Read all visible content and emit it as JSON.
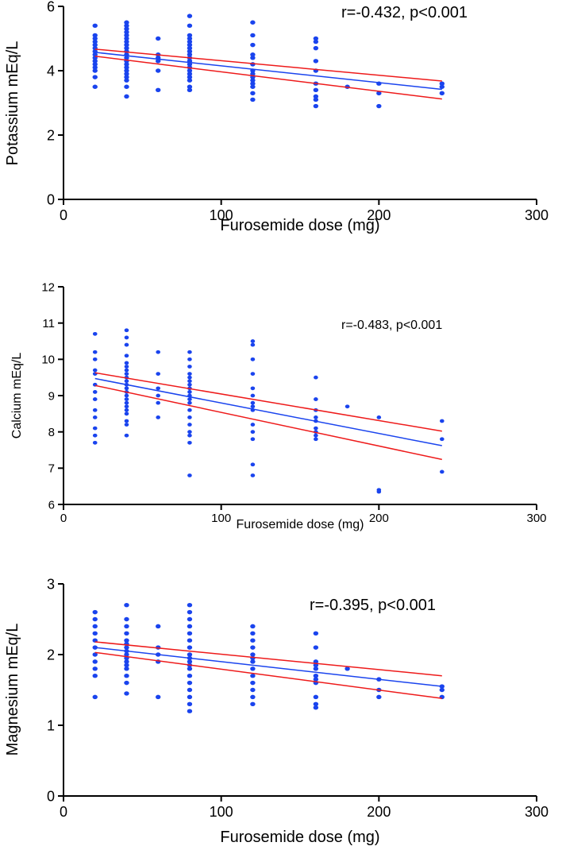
{
  "chart_data": [
    {
      "type": "scatter",
      "xlabel": "Furosemide dose (mg)",
      "ylabel": "Potassium mEq/L",
      "xlim": [
        0,
        300
      ],
      "ylim": [
        0,
        6
      ],
      "xticks": [
        0,
        100,
        200,
        300
      ],
      "yticks": [
        0,
        2,
        4,
        6
      ],
      "annotation": "r=-0.432, p<0.001",
      "point_color": "#1a44ee",
      "fit_color": "#1a44ee",
      "ci_color": "#ee1a1a",
      "points": [
        [
          20,
          5.4
        ],
        [
          20,
          5.1
        ],
        [
          20,
          5.0
        ],
        [
          20,
          4.9
        ],
        [
          20,
          4.8
        ],
        [
          20,
          4.7
        ],
        [
          20,
          4.6
        ],
        [
          20,
          4.5
        ],
        [
          20,
          4.4
        ],
        [
          20,
          4.3
        ],
        [
          20,
          4.2
        ],
        [
          20,
          4.1
        ],
        [
          20,
          4.0
        ],
        [
          20,
          3.8
        ],
        [
          20,
          3.5
        ],
        [
          40,
          5.5
        ],
        [
          40,
          5.4
        ],
        [
          40,
          5.3
        ],
        [
          40,
          5.2
        ],
        [
          40,
          5.1
        ],
        [
          40,
          5.0
        ],
        [
          40,
          4.9
        ],
        [
          40,
          4.8
        ],
        [
          40,
          4.7
        ],
        [
          40,
          4.6
        ],
        [
          40,
          4.5
        ],
        [
          40,
          4.4
        ],
        [
          40,
          4.3
        ],
        [
          40,
          4.2
        ],
        [
          40,
          4.1
        ],
        [
          40,
          4.0
        ],
        [
          40,
          3.9
        ],
        [
          40,
          3.8
        ],
        [
          40,
          3.7
        ],
        [
          40,
          3.5
        ],
        [
          40,
          3.2
        ],
        [
          60,
          5.0
        ],
        [
          60,
          4.5
        ],
        [
          60,
          4.4
        ],
        [
          60,
          4.3
        ],
        [
          60,
          4.0
        ],
        [
          60,
          3.4
        ],
        [
          80,
          5.7
        ],
        [
          80,
          5.4
        ],
        [
          80,
          5.1
        ],
        [
          80,
          5.0
        ],
        [
          80,
          4.9
        ],
        [
          80,
          4.8
        ],
        [
          80,
          4.7
        ],
        [
          80,
          4.6
        ],
        [
          80,
          4.5
        ],
        [
          80,
          4.4
        ],
        [
          80,
          4.3
        ],
        [
          80,
          4.2
        ],
        [
          80,
          4.1
        ],
        [
          80,
          4.0
        ],
        [
          80,
          3.9
        ],
        [
          80,
          3.8
        ],
        [
          80,
          3.7
        ],
        [
          80,
          3.5
        ],
        [
          80,
          3.4
        ],
        [
          120,
          5.5
        ],
        [
          120,
          5.1
        ],
        [
          120,
          4.8
        ],
        [
          120,
          4.5
        ],
        [
          120,
          4.4
        ],
        [
          120,
          4.2
        ],
        [
          120,
          4.0
        ],
        [
          120,
          3.9
        ],
        [
          120,
          3.8
        ],
        [
          120,
          3.7
        ],
        [
          120,
          3.6
        ],
        [
          120,
          3.5
        ],
        [
          120,
          3.3
        ],
        [
          120,
          3.1
        ],
        [
          160,
          5.0
        ],
        [
          160,
          4.9
        ],
        [
          160,
          4.7
        ],
        [
          160,
          4.3
        ],
        [
          160,
          4.0
        ],
        [
          160,
          3.6
        ],
        [
          160,
          3.4
        ],
        [
          160,
          3.2
        ],
        [
          160,
          3.1
        ],
        [
          160,
          2.9
        ],
        [
          180,
          3.5
        ],
        [
          200,
          3.6
        ],
        [
          200,
          3.3
        ],
        [
          200,
          2.9
        ],
        [
          240,
          3.6
        ],
        [
          240,
          3.5
        ],
        [
          240,
          3.3
        ]
      ],
      "fit": {
        "x": [
          20,
          240
        ],
        "y": [
          4.57,
          3.42
        ]
      },
      "ci_upper": {
        "x": [
          20,
          240
        ],
        "y": [
          4.67,
          3.68
        ]
      },
      "ci_lower": {
        "x": [
          20,
          240
        ],
        "y": [
          4.45,
          3.12
        ]
      }
    },
    {
      "type": "scatter",
      "xlabel": "Furosemide dose (mg)",
      "ylabel": "Calcium mEq/L",
      "xlim": [
        0,
        300
      ],
      "ylim": [
        6,
        12
      ],
      "xticks": [
        0,
        100,
        200,
        300
      ],
      "yticks": [
        6,
        7,
        8,
        9,
        10,
        11,
        12
      ],
      "annotation": "r=-0.483, p<0.001",
      "point_color": "#1a44ee",
      "fit_color": "#1a44ee",
      "ci_color": "#ee1a1a",
      "points": [
        [
          20,
          10.7
        ],
        [
          20,
          10.2
        ],
        [
          20,
          10.0
        ],
        [
          20,
          9.7
        ],
        [
          20,
          9.6
        ],
        [
          20,
          9.3
        ],
        [
          20,
          9.1
        ],
        [
          20,
          8.9
        ],
        [
          20,
          8.6
        ],
        [
          20,
          8.4
        ],
        [
          20,
          8.1
        ],
        [
          20,
          7.9
        ],
        [
          20,
          7.7
        ],
        [
          40,
          10.8
        ],
        [
          40,
          10.6
        ],
        [
          40,
          10.4
        ],
        [
          40,
          10.1
        ],
        [
          40,
          9.9
        ],
        [
          40,
          9.8
        ],
        [
          40,
          9.7
        ],
        [
          40,
          9.6
        ],
        [
          40,
          9.5
        ],
        [
          40,
          9.4
        ],
        [
          40,
          9.3
        ],
        [
          40,
          9.2
        ],
        [
          40,
          9.1
        ],
        [
          40,
          9.0
        ],
        [
          40,
          8.9
        ],
        [
          40,
          8.8
        ],
        [
          40,
          8.7
        ],
        [
          40,
          8.6
        ],
        [
          40,
          8.5
        ],
        [
          40,
          8.3
        ],
        [
          40,
          8.2
        ],
        [
          40,
          7.9
        ],
        [
          60,
          10.2
        ],
        [
          60,
          9.6
        ],
        [
          60,
          9.2
        ],
        [
          60,
          9.0
        ],
        [
          60,
          8.8
        ],
        [
          60,
          8.4
        ],
        [
          80,
          10.2
        ],
        [
          80,
          10.0
        ],
        [
          80,
          9.8
        ],
        [
          80,
          9.6
        ],
        [
          80,
          9.5
        ],
        [
          80,
          9.4
        ],
        [
          80,
          9.3
        ],
        [
          80,
          9.2
        ],
        [
          80,
          9.1
        ],
        [
          80,
          9.0
        ],
        [
          80,
          8.9
        ],
        [
          80,
          8.8
        ],
        [
          80,
          8.6
        ],
        [
          80,
          8.4
        ],
        [
          80,
          8.2
        ],
        [
          80,
          8.0
        ],
        [
          80,
          7.9
        ],
        [
          80,
          7.7
        ],
        [
          80,
          6.8
        ],
        [
          120,
          10.5
        ],
        [
          120,
          10.4
        ],
        [
          120,
          10.0
        ],
        [
          120,
          9.6
        ],
        [
          120,
          9.2
        ],
        [
          120,
          9.0
        ],
        [
          120,
          8.8
        ],
        [
          120,
          8.7
        ],
        [
          120,
          8.6
        ],
        [
          120,
          8.2
        ],
        [
          120,
          8.0
        ],
        [
          120,
          7.8
        ],
        [
          120,
          7.1
        ],
        [
          120,
          6.8
        ],
        [
          160,
          9.5
        ],
        [
          160,
          8.9
        ],
        [
          160,
          8.6
        ],
        [
          160,
          8.4
        ],
        [
          160,
          8.3
        ],
        [
          160,
          8.1
        ],
        [
          160,
          8.0
        ],
        [
          160,
          7.9
        ],
        [
          160,
          7.8
        ],
        [
          180,
          8.7
        ],
        [
          200,
          8.4
        ],
        [
          200,
          6.4
        ],
        [
          200,
          6.35
        ],
        [
          240,
          8.3
        ],
        [
          240,
          7.8
        ],
        [
          240,
          6.9
        ]
      ],
      "fit": {
        "x": [
          20,
          240
        ],
        "y": [
          9.47,
          7.62
        ]
      },
      "ci_upper": {
        "x": [
          20,
          240
        ],
        "y": [
          9.63,
          8.02
        ]
      },
      "ci_lower": {
        "x": [
          20,
          240
        ],
        "y": [
          9.28,
          7.24
        ]
      }
    },
    {
      "type": "scatter",
      "xlabel": "Furosemide dose (mg)",
      "ylabel": "Magnesium mEq/L",
      "xlim": [
        0,
        300
      ],
      "ylim": [
        0,
        3
      ],
      "xticks": [
        0,
        100,
        200,
        300
      ],
      "yticks": [
        0,
        1,
        2,
        3
      ],
      "annotation": "r=-0.395, p<0.001",
      "point_color": "#1a44ee",
      "fit_color": "#1a44ee",
      "ci_color": "#ee1a1a",
      "points": [
        [
          20,
          2.6
        ],
        [
          20,
          2.5
        ],
        [
          20,
          2.4
        ],
        [
          20,
          2.3
        ],
        [
          20,
          2.2
        ],
        [
          20,
          2.1
        ],
        [
          20,
          2.0
        ],
        [
          20,
          1.9
        ],
        [
          20,
          1.8
        ],
        [
          20,
          1.7
        ],
        [
          20,
          1.4
        ],
        [
          40,
          2.7
        ],
        [
          40,
          2.5
        ],
        [
          40,
          2.4
        ],
        [
          40,
          2.3
        ],
        [
          40,
          2.2
        ],
        [
          40,
          2.15
        ],
        [
          40,
          2.1
        ],
        [
          40,
          2.05
        ],
        [
          40,
          2.0
        ],
        [
          40,
          1.95
        ],
        [
          40,
          1.9
        ],
        [
          40,
          1.85
        ],
        [
          40,
          1.8
        ],
        [
          40,
          1.7
        ],
        [
          40,
          1.6
        ],
        [
          40,
          1.45
        ],
        [
          60,
          2.4
        ],
        [
          60,
          2.1
        ],
        [
          60,
          2.0
        ],
        [
          60,
          1.9
        ],
        [
          60,
          1.4
        ],
        [
          80,
          2.7
        ],
        [
          80,
          2.6
        ],
        [
          80,
          2.5
        ],
        [
          80,
          2.4
        ],
        [
          80,
          2.3
        ],
        [
          80,
          2.2
        ],
        [
          80,
          2.1
        ],
        [
          80,
          2.0
        ],
        [
          80,
          1.95
        ],
        [
          80,
          1.9
        ],
        [
          80,
          1.85
        ],
        [
          80,
          1.8
        ],
        [
          80,
          1.7
        ],
        [
          80,
          1.6
        ],
        [
          80,
          1.5
        ],
        [
          80,
          1.4
        ],
        [
          80,
          1.3
        ],
        [
          80,
          1.2
        ],
        [
          120,
          2.4
        ],
        [
          120,
          2.3
        ],
        [
          120,
          2.2
        ],
        [
          120,
          2.1
        ],
        [
          120,
          2.0
        ],
        [
          120,
          1.95
        ],
        [
          120,
          1.9
        ],
        [
          120,
          1.8
        ],
        [
          120,
          1.7
        ],
        [
          120,
          1.6
        ],
        [
          120,
          1.5
        ],
        [
          120,
          1.4
        ],
        [
          120,
          1.3
        ],
        [
          160,
          2.3
        ],
        [
          160,
          2.1
        ],
        [
          160,
          1.9
        ],
        [
          160,
          1.85
        ],
        [
          160,
          1.8
        ],
        [
          160,
          1.7
        ],
        [
          160,
          1.65
        ],
        [
          160,
          1.6
        ],
        [
          160,
          1.4
        ],
        [
          160,
          1.3
        ],
        [
          160,
          1.25
        ],
        [
          180,
          1.8
        ],
        [
          200,
          1.65
        ],
        [
          200,
          1.5
        ],
        [
          200,
          1.4
        ],
        [
          240,
          1.55
        ],
        [
          240,
          1.5
        ],
        [
          240,
          1.4
        ]
      ],
      "fit": {
        "x": [
          20,
          240
        ],
        "y": [
          2.1,
          1.55
        ]
      },
      "ci_upper": {
        "x": [
          20,
          240
        ],
        "y": [
          2.18,
          1.7
        ]
      },
      "ci_lower": {
        "x": [
          20,
          240
        ],
        "y": [
          2.03,
          1.38
        ]
      }
    }
  ]
}
